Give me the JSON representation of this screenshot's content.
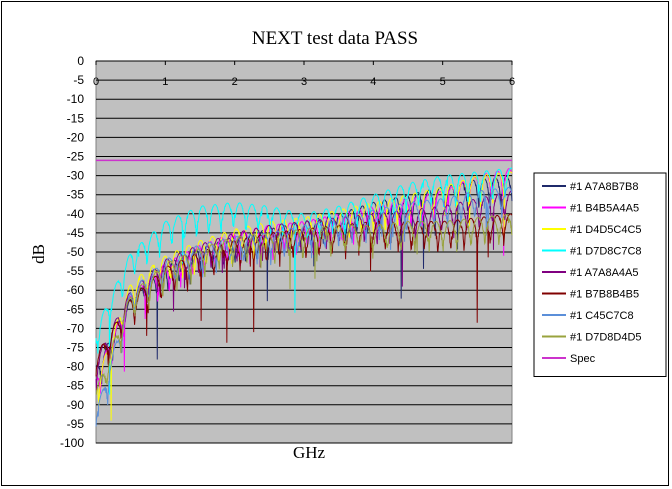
{
  "chart_data": {
    "type": "line",
    "title": "NEXT test data PASS",
    "xlabel": "GHz",
    "ylabel": "dB",
    "xlim": [
      0,
      6
    ],
    "ylim": [
      -100,
      0
    ],
    "x_ticks": [
      "0",
      "1",
      "2",
      "3",
      "4",
      "5",
      "6"
    ],
    "y_ticks": [
      "0",
      "-5",
      "-10",
      "-15",
      "-20",
      "-25",
      "-30",
      "-35",
      "-40",
      "-45",
      "-50",
      "-55",
      "-60",
      "-65",
      "-70",
      "-75",
      "-80",
      "-85",
      "-90",
      "-95",
      "-100"
    ],
    "grid": true,
    "plot_background": "#c0c0c0",
    "legend_position": "right",
    "series": [
      {
        "name": "#1  A7A8B7B8",
        "color": "#1f2a6b",
        "values": [
          [
            0,
            -80
          ],
          [
            0.5,
            -62
          ],
          [
            1,
            -53
          ],
          [
            1.5,
            -49
          ],
          [
            2,
            -46
          ],
          [
            2.5,
            -44
          ],
          [
            3,
            -42
          ],
          [
            3.5,
            -40
          ],
          [
            4,
            -37
          ],
          [
            4.5,
            -35
          ],
          [
            5,
            -33
          ],
          [
            5.5,
            -31
          ],
          [
            6,
            -30
          ]
        ]
      },
      {
        "name": "#1  B4B5A4A5",
        "color": "#ff00ff",
        "values": [
          [
            0,
            -82
          ],
          [
            0.5,
            -61
          ],
          [
            1,
            -53
          ],
          [
            1.5,
            -48
          ],
          [
            2,
            -45
          ],
          [
            2.5,
            -43
          ],
          [
            3,
            -42
          ],
          [
            3.5,
            -40
          ],
          [
            4,
            -38
          ],
          [
            4.5,
            -36
          ],
          [
            5,
            -34
          ],
          [
            5.5,
            -30
          ],
          [
            6,
            -28
          ]
        ]
      },
      {
        "name": "#1  D4D5C4C5",
        "color": "#ffff00",
        "values": [
          [
            0,
            -84
          ],
          [
            0.5,
            -58
          ],
          [
            1,
            -51
          ],
          [
            1.5,
            -47
          ],
          [
            2,
            -44
          ],
          [
            2.5,
            -42
          ],
          [
            3,
            -41
          ],
          [
            3.5,
            -39
          ],
          [
            4,
            -37
          ],
          [
            4.5,
            -35
          ],
          [
            5,
            -33
          ],
          [
            5.5,
            -30
          ],
          [
            6,
            -29
          ]
        ]
      },
      {
        "name": "#1  D7D8C7C8",
        "color": "#00ffff",
        "values": [
          [
            0,
            -70
          ],
          [
            0.5,
            -50
          ],
          [
            1,
            -42
          ],
          [
            1.5,
            -38
          ],
          [
            2,
            -37
          ],
          [
            2.5,
            -38
          ],
          [
            3,
            -40
          ],
          [
            3.5,
            -38
          ],
          [
            4,
            -35
          ],
          [
            4.5,
            -32
          ],
          [
            5,
            -30
          ],
          [
            5.5,
            -29
          ],
          [
            6,
            -28
          ]
        ]
      },
      {
        "name": "#1  A7A8A4A5",
        "color": "#800080",
        "values": [
          [
            0,
            -78
          ],
          [
            0.5,
            -60
          ],
          [
            1,
            -52
          ],
          [
            1.5,
            -48
          ],
          [
            2,
            -45
          ],
          [
            2.5,
            -43
          ],
          [
            3,
            -42
          ],
          [
            3.5,
            -41
          ],
          [
            4,
            -40
          ],
          [
            4.5,
            -39
          ],
          [
            5,
            -38
          ],
          [
            5.5,
            -36
          ],
          [
            6,
            -34
          ]
        ]
      },
      {
        "name": "#1  B7B8B4B5",
        "color": "#800000",
        "values": [
          [
            0,
            -77
          ],
          [
            0.5,
            -62
          ],
          [
            1,
            -54
          ],
          [
            1.5,
            -50
          ],
          [
            2,
            -47
          ],
          [
            2.5,
            -45
          ],
          [
            3,
            -44
          ],
          [
            3.5,
            -43
          ],
          [
            4,
            -42
          ],
          [
            4.5,
            -42
          ],
          [
            5,
            -42
          ],
          [
            5.5,
            -41
          ],
          [
            6,
            -40
          ]
        ]
      },
      {
        "name": "#1  C45C7C8",
        "color": "#5b8fd9",
        "values": [
          [
            0,
            -92
          ],
          [
            0.5,
            -60
          ],
          [
            1,
            -52
          ],
          [
            1.5,
            -48
          ],
          [
            2,
            -46
          ],
          [
            2.5,
            -45
          ],
          [
            3,
            -43
          ],
          [
            3.5,
            -41
          ],
          [
            4,
            -39
          ],
          [
            4.5,
            -37
          ],
          [
            5,
            -36
          ],
          [
            5.5,
            -34
          ],
          [
            6,
            -33
          ]
        ]
      },
      {
        "name": "#1  D7D8D4D5",
        "color": "#99a33d",
        "values": [
          [
            0,
            -86
          ],
          [
            0.5,
            -61
          ],
          [
            1,
            -53
          ],
          [
            1.5,
            -49
          ],
          [
            2,
            -46
          ],
          [
            2.5,
            -45
          ],
          [
            3,
            -44
          ],
          [
            3.5,
            -43
          ],
          [
            4,
            -43
          ],
          [
            4.5,
            -42
          ],
          [
            5,
            -42
          ],
          [
            5.5,
            -41
          ],
          [
            6,
            -40
          ]
        ]
      },
      {
        "name": "Spec",
        "color": "#cc33cc",
        "values": [
          [
            0,
            -26
          ],
          [
            6,
            -26
          ]
        ]
      }
    ]
  }
}
